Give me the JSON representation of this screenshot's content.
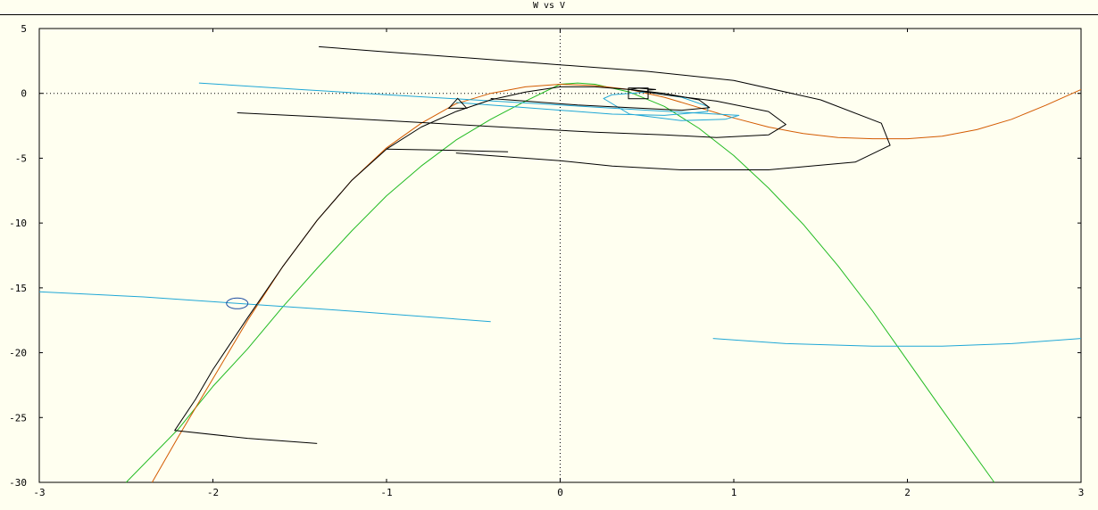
{
  "window": {
    "title": "W vs V"
  },
  "chart_data": {
    "type": "line",
    "title": "W vs V",
    "xlabel": "",
    "ylabel": "",
    "xlim": [
      -3,
      3
    ],
    "ylim": [
      -30,
      5
    ],
    "xticks": [
      -3,
      -2,
      -1,
      0,
      1,
      2,
      3
    ],
    "yticks": [
      5,
      0,
      -5,
      -10,
      -15,
      -20,
      -25,
      -30
    ],
    "zero_lines": "dotted",
    "colors": {
      "black": "#000000",
      "cyan": "#1fa7d6",
      "orange": "#d35a00",
      "green": "#22bb22"
    },
    "series": [
      {
        "color": "#22bb22",
        "x": [
          -2.5,
          -2.2,
          -2,
          -1.8,
          -1.6,
          -1.4,
          -1.2,
          -1,
          -0.8,
          -0.6,
          -0.4,
          -0.2,
          0,
          0.1,
          0.2,
          0.4,
          0.6,
          0.8,
          1,
          1.2,
          1.4,
          1.6,
          1.8,
          2,
          2.2,
          2.5
        ],
        "y": [
          -30,
          -25.9,
          -22.6,
          -19.7,
          -16.5,
          -13.5,
          -10.6,
          -7.9,
          -5.6,
          -3.6,
          -2.0,
          -0.6,
          0.7,
          0.8,
          0.7,
          0.1,
          -1.0,
          -2.7,
          -4.8,
          -7.3,
          -10.1,
          -13.3,
          -16.8,
          -20.6,
          -24.4,
          -30
        ]
      },
      {
        "color": "#d35a00",
        "x": [
          -2.35,
          -2.2,
          -2,
          -1.8,
          -1.6,
          -1.4,
          -1.2,
          -1,
          -0.8,
          -0.6,
          -0.4,
          -0.2,
          0,
          0.2,
          0.4,
          0.6,
          0.8,
          1.0,
          1.2,
          1.4,
          1.6,
          1.8,
          2.0,
          2.2,
          2.4,
          2.6,
          2.8,
          3.0
        ],
        "y": [
          -30,
          -26.5,
          -22.0,
          -17.5,
          -13.4,
          -9.8,
          -6.7,
          -4.2,
          -2.3,
          -0.8,
          0,
          0.5,
          0.7,
          0.6,
          0.3,
          -0.3,
          -1.1,
          -1.9,
          -2.6,
          -3.1,
          -3.4,
          -3.5,
          -3.5,
          -3.3,
          -2.8,
          -2.0,
          -0.9,
          0.3
        ]
      },
      {
        "color": "#1fa7d6",
        "x": [
          -3.0,
          -2.4,
          -1.86,
          -1.2,
          -0.4
        ],
        "y": [
          -15.3,
          -15.7,
          -16.2,
          -16.8,
          -17.6
        ]
      },
      {
        "color": "#1fa7d6",
        "x": [
          0.88,
          1.3,
          1.8,
          2.2,
          2.6,
          3.0
        ],
        "y": [
          -18.9,
          -19.3,
          -19.5,
          -19.5,
          -19.3,
          -18.9
        ]
      },
      {
        "color": "#1fa7d6",
        "x": [
          -2.08,
          -1.5,
          -1,
          -0.5,
          0,
          0.5,
          0.9,
          1.03,
          0.95,
          0.7,
          0.4,
          0.25,
          0.3,
          0.5,
          0.7,
          0.85,
          0.85,
          0.6,
          0.3,
          0.0,
          -0.3,
          -0.6
        ],
        "y": [
          0.8,
          0.3,
          -0.1,
          -0.5,
          -0.9,
          -1.3,
          -1.6,
          -1.7,
          -2.0,
          -2.1,
          -1.6,
          -0.4,
          -0.1,
          0.1,
          -0.3,
          -1.0,
          -1.4,
          -1.7,
          -1.6,
          -1.3,
          -1.0,
          -0.7
        ]
      },
      {
        "color": "#000000",
        "x": [
          -1.4,
          -1.8,
          -2.22,
          -2.1,
          -2.0,
          -1.8,
          -1.6,
          -1.4,
          -1.2,
          -1.0,
          -0.8,
          -0.6,
          -0.4,
          -0.2,
          0,
          0.2,
          0.4,
          0.6,
          0.8,
          0.86,
          0.7,
          0.4,
          0.1,
          -0.2,
          -0.4
        ],
        "y": [
          -27.0,
          -26.6,
          -26.0,
          -23.6,
          -21.3,
          -17.3,
          -13.4,
          -9.8,
          -6.7,
          -4.3,
          -2.6,
          -1.4,
          -0.5,
          0.1,
          0.5,
          0.5,
          0.3,
          0.0,
          -0.5,
          -1.1,
          -1.3,
          -1.1,
          -0.9,
          -0.6,
          -0.4
        ]
      },
      {
        "color": "#000000",
        "x": [
          -1.86,
          -1.4,
          -1.0,
          -0.6,
          -0.2,
          0.2,
          0.6,
          0.9,
          1.2,
          1.3,
          1.2,
          0.9,
          0.6,
          0.4,
          0.45,
          0.55,
          0.5
        ],
        "y": [
          -1.5,
          -1.8,
          -2.1,
          -2.4,
          -2.7,
          -3.0,
          -3.2,
          -3.4,
          -3.2,
          -2.4,
          -1.4,
          -0.6,
          -0.1,
          0.3,
          0.4,
          0.3,
          0.25
        ]
      },
      {
        "color": "#000000",
        "x": [
          -1.39,
          -1.0,
          -0.5,
          0,
          0.5,
          1.0,
          1.5,
          1.85,
          1.9,
          1.7,
          1.2,
          0.7,
          0.3,
          0,
          -0.3,
          -0.6
        ],
        "y": [
          3.6,
          3.2,
          2.7,
          2.2,
          1.7,
          1.0,
          -0.5,
          -2.3,
          -4.0,
          -5.3,
          -5.9,
          -5.9,
          -5.6,
          -5.2,
          -4.9,
          -4.6
        ]
      },
      {
        "color": "#000000",
        "x": [
          -1.0,
          -0.6,
          -0.3
        ],
        "y": [
          -4.3,
          -4.4,
          -4.5
        ]
      }
    ],
    "markers": [
      {
        "shape": "ellipse",
        "x": -1.86,
        "y": -16.2
      },
      {
        "shape": "triangle",
        "x": -0.59,
        "y": -0.8
      },
      {
        "shape": "square",
        "x": 0.45,
        "y": 0.0
      }
    ]
  }
}
